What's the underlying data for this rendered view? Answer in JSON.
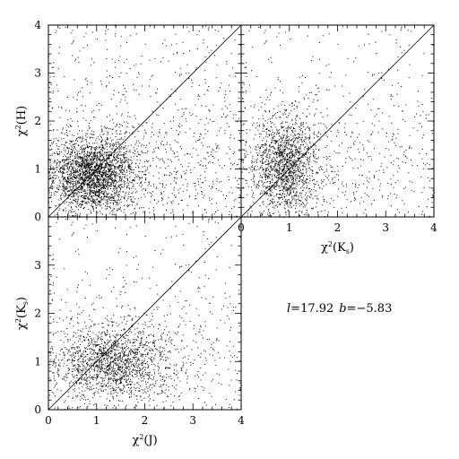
{
  "chart_data": [
    {
      "type": "scatter",
      "panel": "top-left",
      "xlabel": "",
      "ylabel": {
        "base": "χ",
        "sup": "2",
        "arg": "(H)"
      },
      "xlim": [
        0,
        4
      ],
      "ylim": [
        0,
        4
      ],
      "xticks": [],
      "yticks": [
        "1",
        "2",
        "3",
        "4"
      ],
      "reference_line": "y = x",
      "density": {
        "core": [
          0.9,
          0.9
        ],
        "spread": [
          0.45,
          0.4
        ],
        "n_points": 9000
      }
    },
    {
      "type": "scatter",
      "panel": "top-right",
      "xlabel": {
        "base": "χ",
        "sup": "2",
        "arg": "(K",
        "sub": "s",
        "close": ")"
      },
      "ylabel": "",
      "xlim": [
        0,
        4
      ],
      "ylim": [
        0,
        4
      ],
      "xticks": [
        "0",
        "1",
        "2",
        "3",
        "4"
      ],
      "yticks": [],
      "reference_line": "y = x",
      "density": {
        "core": [
          0.9,
          1.1
        ],
        "spread": [
          0.35,
          0.55
        ],
        "n_points": 9000
      }
    },
    {
      "type": "scatter",
      "panel": "bottom-left",
      "xlabel": {
        "base": "χ",
        "sup": "2",
        "arg": "(J)"
      },
      "ylabel": {
        "base": "χ",
        "sup": "2",
        "arg": "(K",
        "sub": "s",
        "close": ")"
      },
      "xlim": [
        0,
        4
      ],
      "ylim": [
        0,
        4
      ],
      "xticks": [
        "0",
        "1",
        "2",
        "3",
        "4"
      ],
      "yticks": [
        "0",
        "1",
        "2",
        "3"
      ],
      "reference_line": "y = x",
      "density": {
        "core": [
          1.3,
          1.0
        ],
        "spread": [
          0.6,
          0.4
        ],
        "n_points": 9000
      }
    }
  ],
  "annotation": {
    "l_symbol": "l",
    "l_value": "=17.92",
    "b_symbol": "b",
    "b_value": "=−5.83"
  },
  "top_left_y0_label": "0"
}
